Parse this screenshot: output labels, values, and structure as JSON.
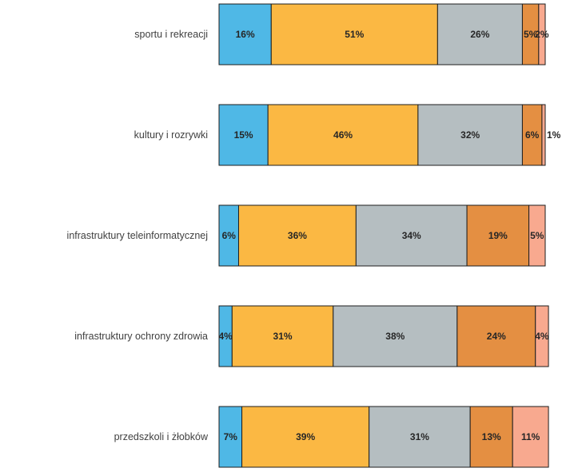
{
  "chart_data": {
    "type": "bar",
    "orientation": "horizontal",
    "stacked": true,
    "normalized": true,
    "xlim": [
      0,
      100
    ],
    "grid": false,
    "categories": [
      "sportu i rekreacji",
      "kultury i rozrywki",
      "infrastruktury teleinformatycznej",
      "infrastruktury ochrony zdrowia",
      "przedszkoli i żłobków"
    ],
    "series": [
      {
        "color": "#4fb8e6",
        "values": [
          16,
          15,
          6,
          4,
          7
        ]
      },
      {
        "color": "#fbb843",
        "values": [
          51,
          46,
          36,
          31,
          39
        ]
      },
      {
        "color": "#b5bec1",
        "values": [
          26,
          32,
          34,
          38,
          31
        ]
      },
      {
        "color": "#e48f42",
        "values": [
          5,
          6,
          19,
          24,
          13
        ]
      },
      {
        "color": "#f8a98f",
        "values": [
          2,
          1,
          5,
          4,
          11
        ]
      }
    ],
    "data_labels": [
      [
        "16%",
        "51%",
        "26%",
        "5%",
        "2%"
      ],
      [
        "15%",
        "46%",
        "32%",
        "6%",
        "1%"
      ],
      [
        "6%",
        "36%",
        "34%",
        "19%",
        "5%"
      ],
      [
        "4%",
        "31%",
        "38%",
        "24%",
        "4%"
      ],
      [
        "7%",
        "39%",
        "31%",
        "13%",
        "11%"
      ]
    ]
  }
}
